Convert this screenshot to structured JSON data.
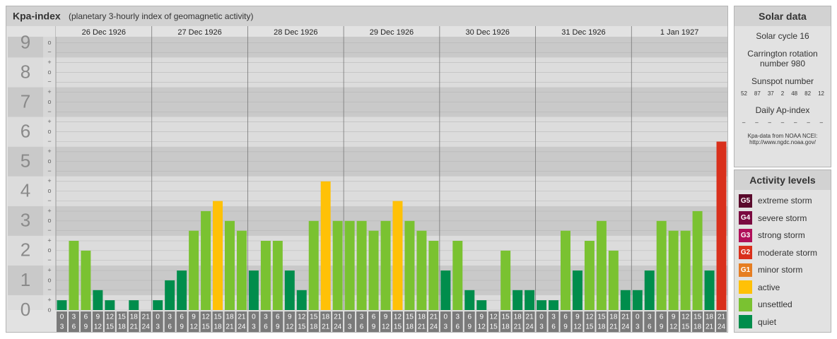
{
  "header": {
    "title": "Kpa-index",
    "subtitle": "(planetary 3-hourly index of geomagnetic activity)"
  },
  "chart_data": {
    "type": "bar",
    "days": [
      "26 Dec 1926",
      "27 Dec 1926",
      "28 Dec 1926",
      "29 Dec 1926",
      "30 Dec 1926",
      "31 Dec 1926",
      "1 Jan 1927"
    ],
    "intervals": [
      {
        "start": "0",
        "end": "3"
      },
      {
        "start": "3",
        "end": "6"
      },
      {
        "start": "6",
        "end": "9"
      },
      {
        "start": "9",
        "end": "12"
      },
      {
        "start": "12",
        "end": "15"
      },
      {
        "start": "15",
        "end": "18"
      },
      {
        "start": "18",
        "end": "21"
      },
      {
        "start": "21",
        "end": "24"
      }
    ],
    "values": [
      0.33,
      2.33,
      2,
      0.67,
      0.33,
      0,
      0.33,
      0,
      0.33,
      1,
      1.33,
      2.67,
      3.33,
      3.67,
      3,
      2.67,
      1.33,
      2.33,
      2.33,
      1.33,
      0.67,
      3,
      4.33,
      3,
      3,
      3,
      2.67,
      3,
      3.67,
      3,
      2.67,
      2.33,
      1.33,
      2.33,
      0.67,
      0.33,
      0,
      2,
      0.67,
      0.67,
      0.33,
      0.33,
      2.67,
      1.33,
      2.33,
      3,
      2,
      0.67,
      0.67,
      1.33,
      3,
      2.67,
      2.67,
      3.33,
      1.33,
      5.67
    ],
    "colors": [
      "#008d4c",
      "#7ac231",
      "#7ac231",
      "#008d4c",
      "#008d4c",
      "#008d4c",
      "#008d4c",
      "#008d4c",
      "#008d4c",
      "#008d4c",
      "#008d4c",
      "#7ac231",
      "#7ac231",
      "#ffc107",
      "#7ac231",
      "#7ac231",
      "#008d4c",
      "#7ac231",
      "#7ac231",
      "#008d4c",
      "#008d4c",
      "#7ac231",
      "#ffc107",
      "#7ac231",
      "#7ac231",
      "#7ac231",
      "#7ac231",
      "#7ac231",
      "#ffc107",
      "#7ac231",
      "#7ac231",
      "#7ac231",
      "#008d4c",
      "#7ac231",
      "#008d4c",
      "#008d4c",
      "#008d4c",
      "#7ac231",
      "#008d4c",
      "#008d4c",
      "#008d4c",
      "#008d4c",
      "#7ac231",
      "#008d4c",
      "#7ac231",
      "#7ac231",
      "#7ac231",
      "#008d4c",
      "#008d4c",
      "#008d4c",
      "#7ac231",
      "#7ac231",
      "#7ac231",
      "#7ac231",
      "#008d4c",
      "#d9301c"
    ],
    "ylim": [
      0,
      9.2
    ],
    "yticks": [
      0,
      1,
      2,
      3,
      4,
      5,
      6,
      7,
      8,
      9
    ],
    "minor_ticks": [
      {
        "value": 0,
        "label": "o"
      },
      {
        "value": 0.33,
        "label": "+"
      },
      {
        "value": 0.67,
        "label": "−"
      },
      {
        "value": 1,
        "label": "o"
      },
      {
        "value": 1.33,
        "label": "+"
      },
      {
        "value": 1.67,
        "label": "−"
      },
      {
        "value": 2,
        "label": "o"
      },
      {
        "value": 2.33,
        "label": "+"
      },
      {
        "value": 2.67,
        "label": "−"
      },
      {
        "value": 3,
        "label": "o"
      },
      {
        "value": 3.33,
        "label": "+"
      },
      {
        "value": 3.67,
        "label": "−"
      },
      {
        "value": 4,
        "label": "o"
      },
      {
        "value": 4.33,
        "label": "+"
      },
      {
        "value": 4.67,
        "label": "−"
      },
      {
        "value": 5,
        "label": "o"
      },
      {
        "value": 5.33,
        "label": "+"
      },
      {
        "value": 5.67,
        "label": "−"
      },
      {
        "value": 6,
        "label": "o"
      },
      {
        "value": 6.33,
        "label": "+"
      },
      {
        "value": 6.67,
        "label": "−"
      },
      {
        "value": 7,
        "label": "o"
      },
      {
        "value": 7.33,
        "label": "+"
      },
      {
        "value": 7.67,
        "label": "−"
      },
      {
        "value": 8,
        "label": "o"
      },
      {
        "value": 8.33,
        "label": "+"
      },
      {
        "value": 8.67,
        "label": "−"
      },
      {
        "value": 9,
        "label": "o"
      }
    ]
  },
  "solar_data": {
    "title": "Solar data",
    "cycle": "Solar cycle 16",
    "carrington": [
      "Carrington rotation",
      "number 980"
    ],
    "sunspot_title": "Sunspot number",
    "sunspot_numbers": [
      52,
      87,
      37,
      2,
      48,
      82,
      12
    ],
    "ap_title": "Daily Ap-index",
    "ap_index": [
      "–",
      "–",
      "–",
      "–",
      "–",
      "–",
      "–"
    ],
    "source": [
      "Kpa-data from NOAA NCEI:",
      "http://www.ngdc.noaa.gov/"
    ]
  },
  "activity_levels": {
    "title": "Activity levels",
    "items": [
      {
        "badge": "G5",
        "name": "extreme storm",
        "color": "#5a0a2c"
      },
      {
        "badge": "G4",
        "name": "severe storm",
        "color": "#7a0a40"
      },
      {
        "badge": "G3",
        "name": "strong storm",
        "color": "#b0105a"
      },
      {
        "badge": "G2",
        "name": "moderate storm",
        "color": "#d9301c"
      },
      {
        "badge": "G1",
        "name": "minor storm",
        "color": "#e67e22"
      },
      {
        "name": "active",
        "color": "#ffc107"
      },
      {
        "name": "unsettled",
        "color": "#7ac231"
      },
      {
        "name": "quiet",
        "color": "#008d4c"
      }
    ]
  }
}
